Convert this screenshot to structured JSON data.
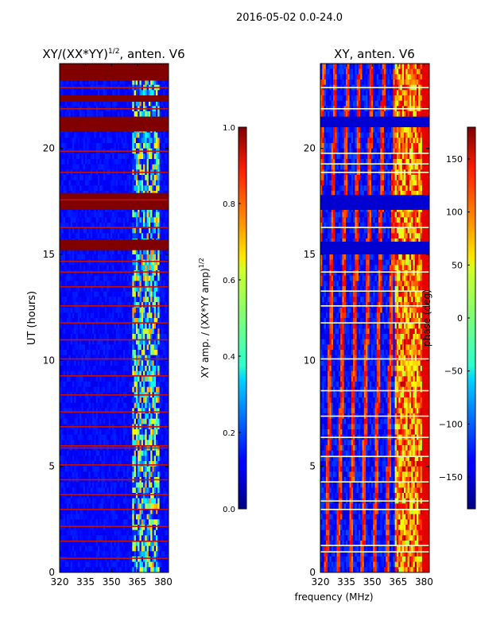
{
  "figure": {
    "suptitle": "2016-05-02 0.0-24.0",
    "xlabel_shared": "frequency (MHz)"
  },
  "chart_data": [
    {
      "type": "heatmap",
      "title": "XY/(XX*YY)",
      "title_exponent": "1/2",
      "title_suffix": ", anten. V6",
      "xlabel": "",
      "ylabel": "UT (hours)",
      "xlim": [
        320,
        383
      ],
      "ylim": [
        0,
        24
      ],
      "xticks": [
        320,
        335,
        350,
        365,
        380
      ],
      "yticks": [
        0,
        5,
        10,
        15,
        20
      ],
      "background_value": 0.1,
      "flagged_value": 1.0,
      "flagged_bands_hours": [
        [
          23.2,
          24.0
        ],
        [
          22.2,
          22.5
        ],
        [
          20.8,
          21.5
        ],
        [
          17.1,
          17.9
        ],
        [
          15.2,
          15.7
        ]
      ],
      "flagged_lines_hours": [
        22.9,
        21.9,
        19.9,
        18.9,
        17.6,
        16.3,
        14.7,
        14.2,
        13.5,
        12.6,
        11.8,
        11.0,
        10.1,
        9.3,
        8.4,
        7.6,
        6.9,
        6.0,
        5.9,
        5.1,
        4.4,
        3.7,
        3.0,
        2.2,
        1.5,
        0.7
      ],
      "high_coherence_band_mhz": [
        362,
        378
      ],
      "colorbar": {
        "label": "XY amp. / (XX*YY amp)",
        "label_exponent": "1/2",
        "range": [
          0.0,
          1.0
        ],
        "ticks": [
          "0.0",
          "0.2",
          "0.4",
          "0.6",
          "0.8",
          "1.0"
        ]
      }
    },
    {
      "type": "heatmap",
      "title": "XY, anten. V6",
      "xlabel": "frequency (MHz)",
      "ylabel": "",
      "xlim": [
        320,
        383
      ],
      "ylim": [
        0,
        24
      ],
      "xticks": [
        320,
        335,
        350,
        365,
        380
      ],
      "yticks": [
        0,
        5,
        10,
        15,
        20
      ],
      "flagged_bands_hours": [
        [
          21.0,
          21.5
        ],
        [
          17.1,
          17.8
        ],
        [
          15.0,
          15.6
        ]
      ],
      "flagged_lines_hours": [
        22.9,
        21.9,
        19.8,
        19.3,
        18.9,
        16.3,
        14.2,
        13.3,
        12.6,
        11.8,
        10.1,
        8.6,
        7.4,
        6.4,
        5.5,
        4.3,
        3.4,
        3.0,
        1.3,
        1.0
      ],
      "colorbar": {
        "label": "phase (deg)",
        "range": [
          -180,
          180
        ],
        "ticks": [
          "150",
          "100",
          "50",
          "0",
          "−50",
          "−100",
          "−150"
        ],
        "tick_values": [
          150,
          100,
          50,
          0,
          -50,
          -100,
          -150
        ]
      }
    }
  ]
}
